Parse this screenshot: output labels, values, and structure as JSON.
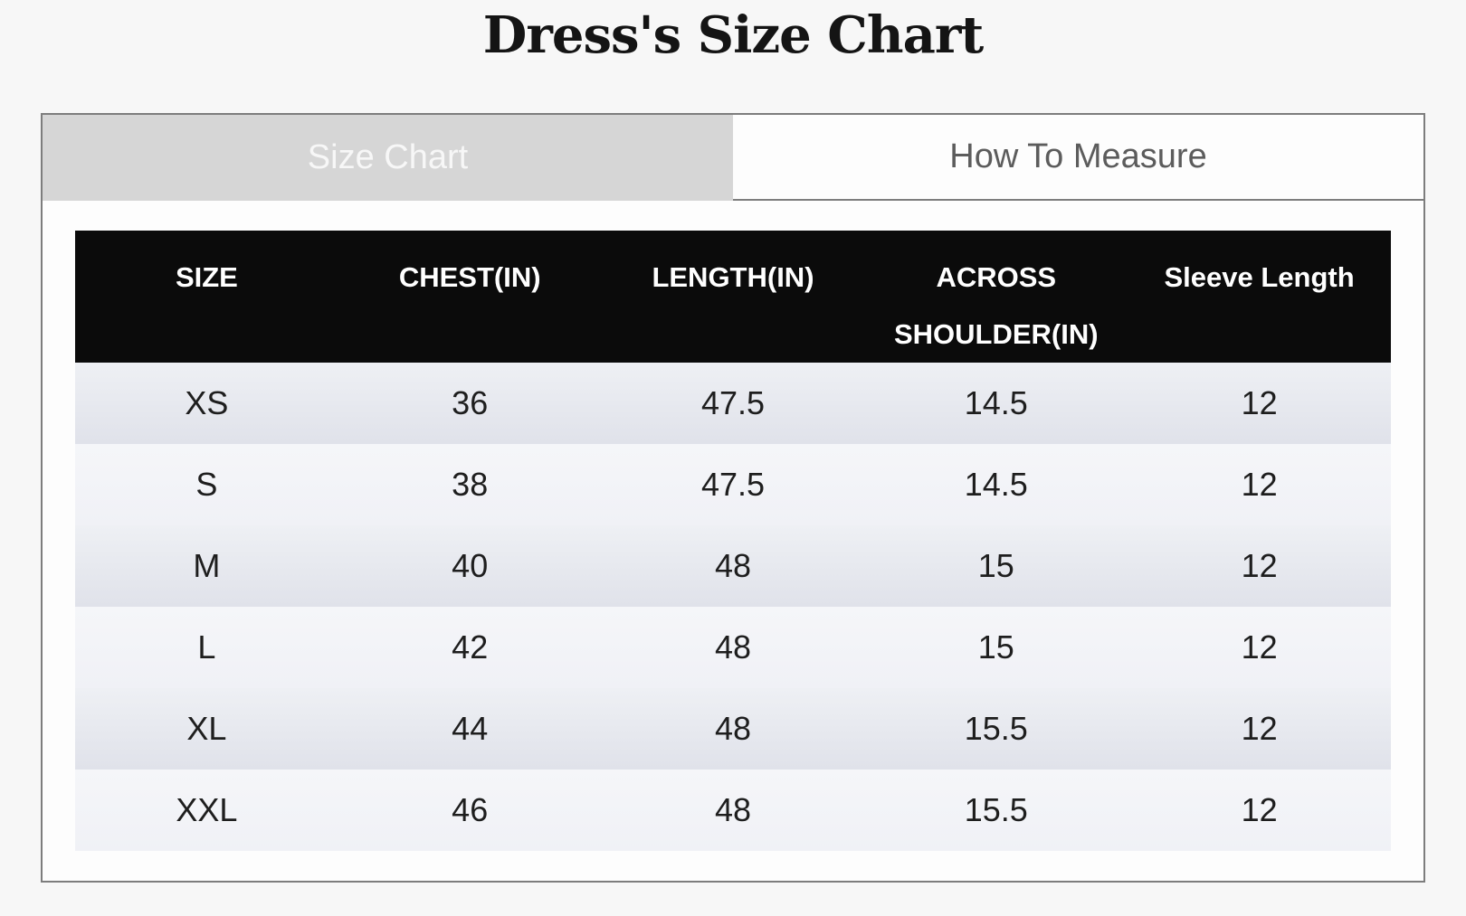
{
  "title": "Dress's Size Chart",
  "tabs": [
    {
      "id": "size-chart",
      "label": "Size Chart",
      "active": true
    },
    {
      "id": "how-to-measure",
      "label": "How To Measure",
      "active": false
    }
  ],
  "size_table": {
    "columns": [
      "SIZE",
      "CHEST(IN)",
      "LENGTH(IN)",
      "ACROSS SHOULDER(IN)",
      "Sleeve Length"
    ],
    "rows": [
      [
        "XS",
        "36",
        "47.5",
        "14.5",
        "12"
      ],
      [
        "S",
        "38",
        "47.5",
        "14.5",
        "12"
      ],
      [
        "M",
        "40",
        "48",
        "15",
        "12"
      ],
      [
        "L",
        "42",
        "48",
        "15",
        "12"
      ],
      [
        "XL",
        "44",
        "48",
        "15.5",
        "12"
      ],
      [
        "XXL",
        "46",
        "48",
        "15.5",
        "12"
      ]
    ]
  },
  "colors": {
    "page_bg": "#f7f7f7",
    "panel_bg": "#fdfdfd",
    "panel_border": "#7d7d7d",
    "active_tab_bg": "#d6d6d6",
    "active_tab_text": "#f7f7f7",
    "inactive_tab_text": "#5c5c5c",
    "header_bg": "#0b0b0b",
    "header_text": "#ffffff",
    "row_odd_bg": "#e2e4ec",
    "row_even_bg": "#f2f3f7",
    "cell_text": "#1e1e1e",
    "title_text": "#141414"
  }
}
